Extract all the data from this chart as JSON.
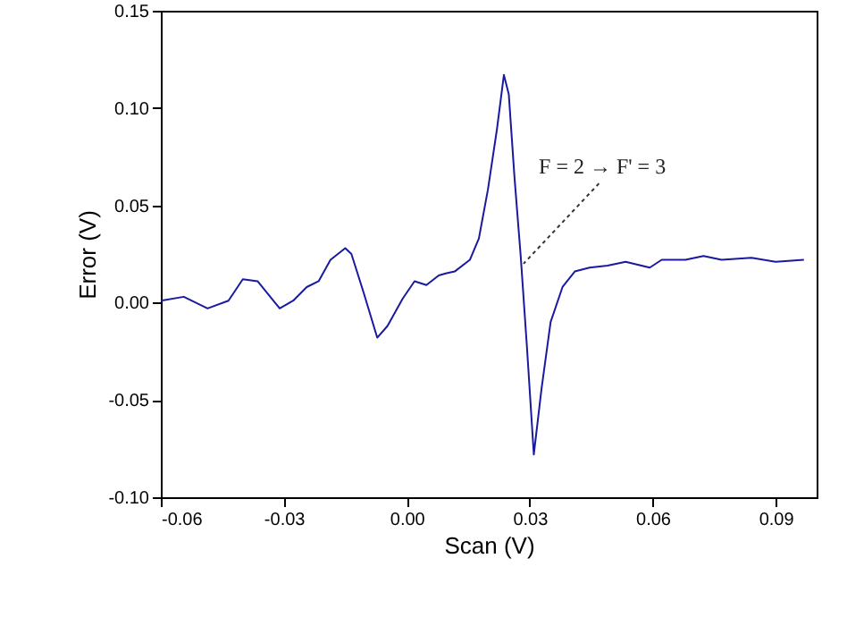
{
  "chart_data": {
    "type": "line",
    "xlabel": "Scan (V)",
    "ylabel": "Error (V)",
    "xlim": [
      -0.06,
      0.1
    ],
    "ylim": [
      -0.1,
      0.15
    ],
    "xticks": [
      -0.06,
      -0.03,
      {
        "value": 0,
        "label": "0.00"
      },
      0.03,
      0.06,
      0.09
    ],
    "yticks": [
      {
        "value": -0.1,
        "label": "-0.10"
      },
      -0.05,
      {
        "value": 0,
        "label": "0.00"
      },
      0.05,
      {
        "value": 0.1,
        "label": "0.10"
      },
      0.15
    ],
    "grid": false,
    "marker": "none",
    "line_style": "solid",
    "annotations": [
      {
        "text": "F = 2 → F' = 3",
        "x": 0.0285,
        "y": 0.02
      }
    ],
    "series": [
      {
        "color": "#1a1aa0",
        "x": [
          -0.06,
          -0.0544,
          -0.0486,
          -0.0435,
          -0.04,
          -0.0364,
          -0.031,
          -0.0277,
          -0.0244,
          -0.0215,
          -0.0186,
          -0.015,
          -0.0135,
          -0.0105,
          -0.0072,
          -0.0047,
          -0.001,
          0.0019,
          0.0048,
          0.0078,
          0.0095,
          0.0117,
          0.0154,
          0.0176,
          0.0198,
          0.022,
          0.0237,
          0.0249,
          0.0263,
          0.0278,
          0.0293,
          0.031,
          0.0329,
          0.0351,
          0.038,
          0.041,
          0.0446,
          0.049,
          0.0534,
          0.0593,
          0.0622,
          0.068,
          0.0724,
          0.0768,
          0.0841,
          0.09,
          0.0969
        ],
        "values": [
          0.001,
          0.003,
          -0.003,
          0.001,
          0.012,
          0.011,
          -0.003,
          0.001,
          0.008,
          0.011,
          0.022,
          0.028,
          0.025,
          0.005,
          -0.018,
          -0.012,
          0.002,
          0.011,
          0.009,
          0.014,
          0.015,
          0.016,
          0.022,
          0.033,
          0.058,
          0.089,
          0.117,
          0.107,
          0.064,
          0.024,
          -0.022,
          -0.078,
          -0.044,
          -0.01,
          0.008,
          0.016,
          0.018,
          0.019,
          0.021,
          0.018,
          0.022,
          0.022,
          0.024,
          0.022,
          0.023,
          0.021,
          0.022
        ]
      }
    ]
  }
}
